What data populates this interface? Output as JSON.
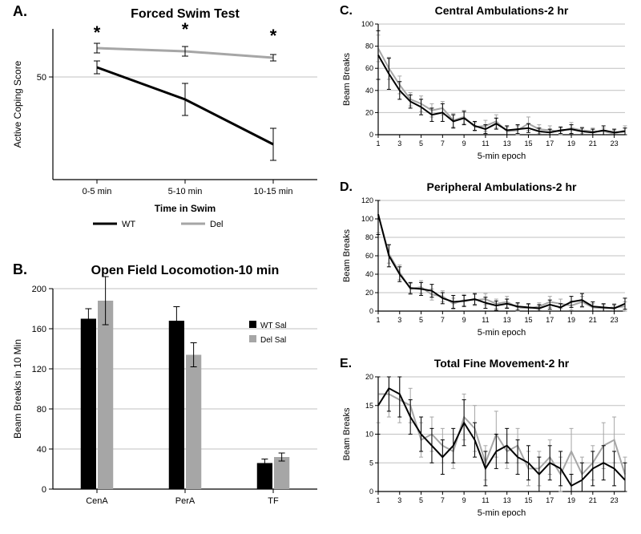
{
  "global": {
    "font_family": "Arial, Helvetica, sans-serif",
    "background": "#ffffff",
    "axis_color": "#000000",
    "grid_color": "#c0c0c0"
  },
  "legend": {
    "wt_label": "WT",
    "del_label": "Del",
    "wt_color": "#000000",
    "del_color": "#a6a6a6"
  },
  "panelA": {
    "label": "A.",
    "title": "Forced Swim Test",
    "type": "line",
    "xlabel": "Time in Swim",
    "ylabel": "Active Coping Score",
    "categories": [
      "0-5 min",
      "5-10 min",
      "10-15 min"
    ],
    "yticks": [
      50
    ],
    "series": [
      {
        "name": "WT",
        "color": "#000000",
        "y": [
          53,
          43,
          29
        ],
        "err": [
          2,
          5,
          5
        ],
        "lw": 3
      },
      {
        "name": "Del",
        "color": "#a6a6a6",
        "y": [
          59,
          58,
          56
        ],
        "err": [
          1.5,
          1.5,
          1
        ],
        "lw": 3
      }
    ],
    "stars": {
      "xi": [
        0,
        1,
        2
      ],
      "y": [
        62,
        63,
        61
      ],
      "char": "*",
      "fontsize": 22
    },
    "legend_pos": "bottom",
    "title_fontsize": 16,
    "label_fontsize": 12,
    "tick_fontsize": 11
  },
  "panelB": {
    "label": "B.",
    "title": "Open Field Locomotion-10 min",
    "type": "bar",
    "xlabel": "",
    "ylabel": "Beam Breaks in 10 Min",
    "categories": [
      "CenA",
      "PerA",
      "TF"
    ],
    "yticks": [
      0,
      40,
      80,
      120,
      160,
      200
    ],
    "series": [
      {
        "name": "WT Sal",
        "color": "#000000",
        "y": [
          170,
          168,
          26
        ],
        "err": [
          10,
          14,
          4
        ]
      },
      {
        "name": "Del Sal",
        "color": "#a6a6a6",
        "y": [
          188,
          134,
          32
        ],
        "err": [
          24,
          12,
          4
        ]
      }
    ],
    "bar_width": 0.35,
    "gap": 0.06,
    "title_fontsize": 16,
    "label_fontsize": 12,
    "tick_fontsize": 11
  },
  "panelC": {
    "label": "C.",
    "title": "Central Ambulations-2 hr",
    "type": "line",
    "ylabel": "Beam Breaks",
    "xlabel": "5-min epoch",
    "xticks": [
      1,
      3,
      5,
      7,
      9,
      11,
      13,
      15,
      17,
      19,
      21,
      23
    ],
    "yticks": [
      0,
      20,
      40,
      60,
      80,
      100
    ],
    "series": [
      {
        "name": "WT",
        "color": "#000000",
        "lw": 2,
        "y": [
          72,
          55,
          40,
          30,
          25,
          18,
          20,
          12,
          15,
          8,
          5,
          10,
          4,
          5,
          6,
          3,
          2,
          4,
          5,
          3,
          2,
          4,
          2,
          3
        ],
        "err": [
          22,
          14,
          8,
          6,
          7,
          6,
          8,
          6,
          6,
          4,
          4,
          5,
          4,
          4,
          4,
          3,
          3,
          3,
          4,
          3,
          3,
          4,
          3,
          3
        ]
      },
      {
        "name": "Del",
        "color": "#a6a6a6",
        "lw": 2,
        "y": [
          78,
          60,
          45,
          32,
          28,
          22,
          24,
          13,
          16,
          7,
          8,
          12,
          3,
          4,
          10,
          5,
          4,
          3,
          6,
          4,
          3,
          3,
          1,
          4
        ],
        "err": [
          12,
          10,
          8,
          6,
          7,
          6,
          6,
          6,
          6,
          4,
          5,
          6,
          4,
          4,
          6,
          4,
          4,
          3,
          5,
          3,
          3,
          3,
          3,
          4
        ]
      }
    ],
    "title_fontsize": 14,
    "label_fontsize": 11,
    "tick_fontsize": 9
  },
  "panelD": {
    "label": "D.",
    "title": "Peripheral Ambulations-2 hr",
    "type": "line",
    "ylabel": "Beam Breaks",
    "xlabel": "5-min epoch",
    "xticks": [
      1,
      3,
      5,
      7,
      9,
      11,
      13,
      15,
      17,
      19,
      21,
      23
    ],
    "yticks": [
      0,
      20,
      40,
      60,
      80,
      100,
      120
    ],
    "series": [
      {
        "name": "WT",
        "color": "#000000",
        "lw": 2,
        "y": [
          105,
          60,
          40,
          25,
          24,
          22,
          14,
          10,
          11,
          13,
          9,
          6,
          8,
          5,
          4,
          3,
          7,
          4,
          10,
          12,
          5,
          4,
          3,
          8
        ],
        "err": [
          22,
          12,
          8,
          6,
          7,
          7,
          6,
          7,
          6,
          6,
          6,
          5,
          5,
          4,
          4,
          4,
          5,
          4,
          6,
          7,
          5,
          4,
          4,
          6
        ]
      },
      {
        "name": "Del",
        "color": "#a6a6a6",
        "lw": 2,
        "y": [
          105,
          62,
          42,
          24,
          26,
          18,
          16,
          8,
          12,
          12,
          13,
          8,
          10,
          4,
          3,
          5,
          10,
          8,
          6,
          10,
          4,
          3,
          4,
          5
        ],
        "err": [
          20,
          10,
          8,
          6,
          7,
          6,
          6,
          6,
          6,
          6,
          6,
          5,
          6,
          4,
          4,
          4,
          6,
          5,
          5,
          6,
          4,
          4,
          4,
          5
        ]
      }
    ],
    "title_fontsize": 14,
    "label_fontsize": 11,
    "tick_fontsize": 9
  },
  "panelE": {
    "label": "E.",
    "title": "Total Fine Movement-2 hr",
    "type": "line",
    "ylabel": "Beam Breaks",
    "xlabel": "5-min epoch",
    "xticks": [
      1,
      3,
      5,
      7,
      9,
      11,
      13,
      15,
      17,
      19,
      21,
      23
    ],
    "yticks": [
      0,
      5,
      10,
      15,
      20
    ],
    "series": [
      {
        "name": "WT",
        "color": "#000000",
        "lw": 2,
        "y": [
          15,
          18,
          17,
          13,
          10,
          8,
          6,
          8,
          12,
          9,
          4,
          7,
          8,
          6,
          5,
          3,
          5,
          4,
          1,
          2,
          4,
          5,
          4,
          2
        ],
        "err": [
          5,
          4,
          4,
          3,
          3,
          3,
          3,
          3,
          4,
          3,
          3,
          3,
          3,
          3,
          3,
          3,
          3,
          3,
          2,
          3,
          3,
          3,
          3,
          3
        ]
      },
      {
        "name": "Del",
        "color": "#a6a6a6",
        "lw": 2,
        "y": [
          17,
          17,
          16,
          15,
          9,
          10,
          8,
          7,
          13,
          11,
          5,
          10,
          7,
          8,
          4,
          4,
          6,
          3,
          7,
          3,
          5,
          8,
          9,
          3
        ],
        "err": [
          5,
          4,
          4,
          3,
          3,
          3,
          3,
          3,
          4,
          4,
          3,
          4,
          3,
          3,
          3,
          3,
          3,
          3,
          4,
          3,
          3,
          4,
          4,
          3
        ]
      }
    ],
    "title_fontsize": 14,
    "label_fontsize": 11,
    "tick_fontsize": 9
  }
}
